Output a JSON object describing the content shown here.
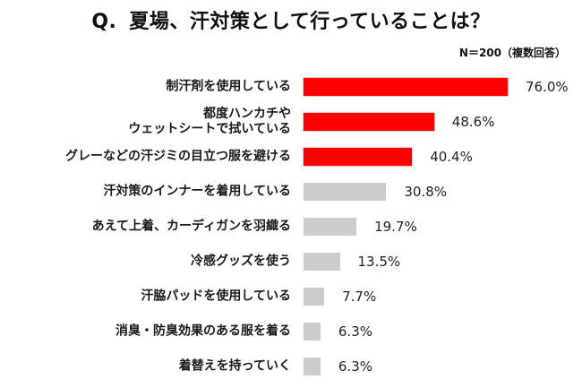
{
  "header": {
    "q_prefix": "Q.",
    "question": "夏場、汗対策として行っていることは？",
    "note": "N＝200（複数回答）"
  },
  "colors": {
    "highlight": "#ff0000",
    "default": "#cccccc"
  },
  "chart_data": {
    "type": "bar",
    "orientation": "horizontal",
    "title": "Q. 夏場、汗対策として行っていることは？",
    "subtitle": "N＝200（複数回答）",
    "xlabel": "",
    "ylabel": "",
    "unit": "%",
    "grid": false,
    "legend": null,
    "categories": [
      "制汗剤を使用している",
      "都度ハンカチやウェットシートで拭いている",
      "グレーなどの汗ジミの目立つ服を避ける",
      "汗対策のインナーを着用している",
      "あえて上着、カーディガンを羽織る",
      "冷感グッズを使う",
      "汗脇パッドを使用している",
      "消臭・防臭効果のある服を着る",
      "着替えを持っていく"
    ],
    "values": [
      76.0,
      48.6,
      40.4,
      30.8,
      19.7,
      13.5,
      7.7,
      6.3,
      6.3
    ],
    "value_labels": [
      "76.0%",
      "48.6%",
      "40.4%",
      "30.8%",
      "19.7%",
      "13.5%",
      "7.7%",
      "6.3%",
      "6.3%"
    ],
    "bar_colors": [
      "#ff0000",
      "#ff0000",
      "#ff0000",
      "#cccccc",
      "#cccccc",
      "#cccccc",
      "#cccccc",
      "#cccccc",
      "#cccccc"
    ]
  },
  "rows": [
    {
      "label_line1": "制汗剤を使用している",
      "label_line2": "",
      "value": "76.0%"
    },
    {
      "label_line1": "都度ハンカチや",
      "label_line2": "ウェットシートで拭いている",
      "value": "48.6%"
    },
    {
      "label_line1": "グレーなどの汗ジミの目立つ服を避ける",
      "label_line2": "",
      "value": "40.4%"
    },
    {
      "label_line1": "汗対策のインナーを着用している",
      "label_line2": "",
      "value": "30.8%"
    },
    {
      "label_line1": "あえて上着、カーディガンを羽織る",
      "label_line2": "",
      "value": "19.7%"
    },
    {
      "label_line1": "冷感グッズを使う",
      "label_line2": "",
      "value": "13.5%"
    },
    {
      "label_line1": "汗脇パッドを使用している",
      "label_line2": "",
      "value": "7.7%"
    },
    {
      "label_line1": "消臭・防臭効果のある服を着る",
      "label_line2": "",
      "value": "6.3%"
    },
    {
      "label_line1": "着替えを持っていく",
      "label_line2": "",
      "value": "6.3%"
    }
  ]
}
